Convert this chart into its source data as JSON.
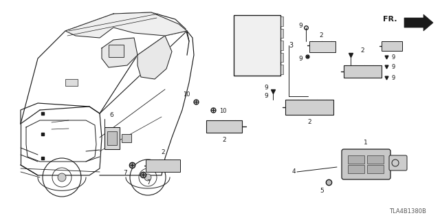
{
  "bg_color": "#ffffff",
  "line_color": "#1a1a1a",
  "text_color": "#1a1a1a",
  "diagram_code": "TLA4B1380B",
  "fr_label": "FR.",
  "figsize": [
    6.4,
    3.2
  ],
  "dpi": 100
}
